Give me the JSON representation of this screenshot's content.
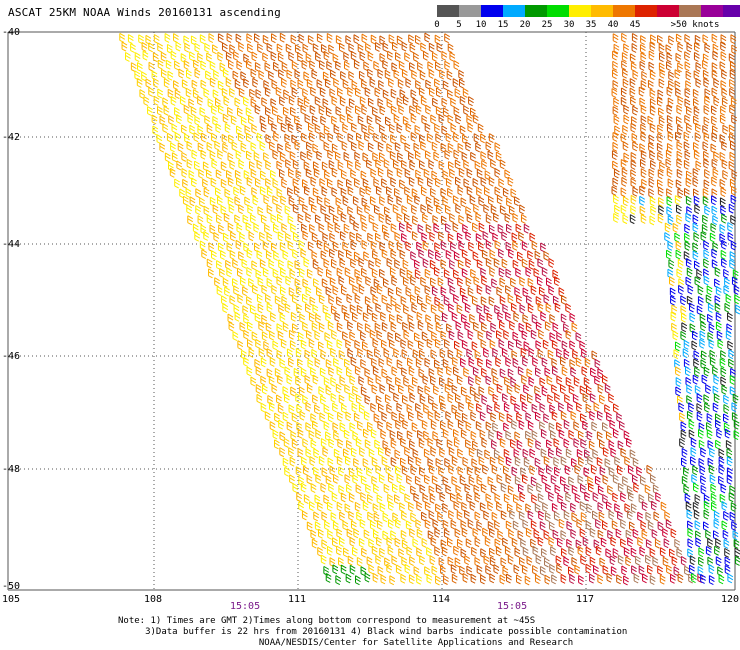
{
  "title": "ASCAT 25KM NOAA Winds 20160131 ascending",
  "colors": {
    "grid": "#555555",
    "time_label": "#7a1a8a",
    "barb_palette": [
      "#555555",
      "#888888",
      "#0000ff",
      "#00aaff",
      "#009900",
      "#00dd00",
      "#ffee00",
      "#ffbb00",
      "#ee7700",
      "#dd2200",
      "#cc0033",
      "#aa7755",
      "#990099",
      "#6600aa"
    ]
  },
  "colorbar": {
    "colors": [
      "#555555",
      "#999999",
      "#0000ee",
      "#00aaff",
      "#009900",
      "#00dd00",
      "#ffee00",
      "#ffbb00",
      "#ee7700",
      "#dd2200",
      "#cc0033",
      "#aa7755",
      "#990099",
      "#6600aa"
    ],
    "labels": [
      "0",
      "5",
      "10",
      "15",
      "20",
      "25",
      "30",
      "35",
      "40",
      "45",
      ">50 knots"
    ]
  },
  "map": {
    "lon_labels": [
      "105",
      "108",
      "111",
      "114",
      "117",
      "120"
    ],
    "lat_labels": [
      "-40",
      "-42",
      "-44",
      "-46",
      "-48",
      "-50"
    ],
    "time_labels": [
      "15:05",
      "15:05"
    ]
  },
  "notes": [
    "Note: 1) Times are GMT 2)Times along bottom correspond to measurement at ~45S",
    "     3)Data buffer is 22 hrs from 20160131 4) Black wind barbs indicate possible contamination",
    "                          NOAA/NESDIS/Center for Satellite Applications and Research"
  ]
}
